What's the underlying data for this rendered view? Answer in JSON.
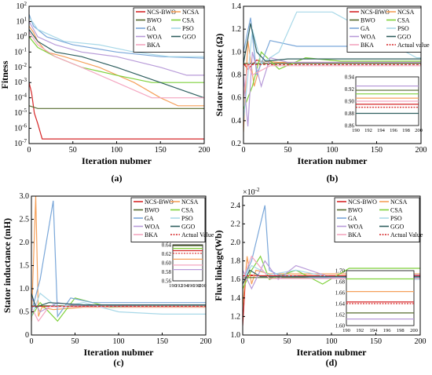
{
  "chart_data": [
    {
      "panel_label": "(a)",
      "type": "line",
      "ylabel": "Fitness",
      "xlabel": "Iteration nubmer",
      "yscale": "log",
      "xlim": [
        0,
        200
      ],
      "ylim": [
        1e-07,
        100
      ],
      "xticks": [
        0,
        50,
        100,
        150,
        200
      ],
      "yticks": [
        1e-07,
        1e-06,
        1e-05,
        0.0001,
        0.001,
        0.01,
        0.1,
        1,
        10,
        100
      ],
      "ytick_labels": [
        "10^-7",
        "10^-6",
        "10^-5",
        "10^-4",
        "10^-3",
        "10^-2",
        "10^-1",
        "10^0",
        "10^1",
        "10^2"
      ],
      "legend_position": "top-right",
      "series": [
        {
          "name": "NCS-BWO",
          "color": "#d62728",
          "x": [
            0,
            3,
            6,
            10,
            15,
            200
          ],
          "y": [
            0.001,
            0.0002,
            1e-05,
            2e-06,
            2e-07,
            2e-07
          ]
        },
        {
          "name": "NCSA",
          "color": "#f5a05a",
          "x": [
            0,
            5,
            10,
            20,
            40,
            80,
            120,
            150,
            170,
            200
          ],
          "y": [
            5,
            2,
            0.5,
            0.1,
            0.05,
            0.01,
            0.001,
            0.0001,
            3e-05,
            3e-05
          ]
        },
        {
          "name": "BWO",
          "color": "#556b2f",
          "x": [
            0,
            10,
            200
          ],
          "y": [
            3e-05,
            2e-05,
            2e-05
          ]
        },
        {
          "name": "CSA",
          "color": "#7fd13b",
          "x": [
            0,
            10,
            30,
            60,
            100,
            140,
            200
          ],
          "y": [
            1,
            0.2,
            0.05,
            0.01,
            0.003,
            0.001,
            0.001
          ]
        },
        {
          "name": "GA",
          "color": "#7aa7d9",
          "x": [
            0,
            5,
            20,
            50,
            100,
            150,
            200
          ],
          "y": [
            30,
            5,
            1,
            0.3,
            0.1,
            0.05,
            0.04
          ]
        },
        {
          "name": "PSO",
          "color": "#a8d8e8",
          "x": [
            0,
            10,
            40,
            80,
            120,
            160,
            200
          ],
          "y": [
            20,
            3,
            0.5,
            0.3,
            0.1,
            0.05,
            0.05
          ]
        },
        {
          "name": "WOA",
          "color": "#b89bd9",
          "x": [
            0,
            10,
            30,
            60,
            100,
            150,
            180,
            200
          ],
          "y": [
            10,
            1,
            0.3,
            0.1,
            0.05,
            0.01,
            0.003,
            0.003
          ]
        },
        {
          "name": "GGO",
          "color": "#2f5f5f",
          "x": [
            0,
            10,
            30,
            60,
            100,
            150,
            200
          ],
          "y": [
            3,
            0.5,
            0.1,
            0.05,
            0.01,
            0.001,
            0.0001
          ]
        },
        {
          "name": "BKA",
          "color": "#f4a6c0",
          "x": [
            0,
            10,
            30,
            60,
            100,
            140,
            200
          ],
          "y": [
            2,
            0.3,
            0.05,
            0.01,
            0.001,
            0.0001,
            0.0001
          ]
        }
      ]
    },
    {
      "panel_label": "(b)",
      "type": "line",
      "ylabel": "Stator resistance (Ω)",
      "xlabel": "Iteration nubmer",
      "xlim": [
        0,
        200
      ],
      "ylim": [
        0.2,
        1.4
      ],
      "xticks": [
        0,
        50,
        100,
        150,
        200
      ],
      "yticks": [
        0.2,
        0.4,
        0.6,
        0.8,
        1.0,
        1.2,
        1.4
      ],
      "ytick_labels": [
        "0.2",
        "0.4",
        "0.6",
        "0.8",
        "1.0",
        "1.2",
        "1.4"
      ],
      "legend_position": "top-right",
      "actual_value": 0.89,
      "series": [
        {
          "name": "NCS-BWO",
          "color": "#d62728",
          "x": [
            0,
            5,
            15,
            25,
            40,
            200
          ],
          "y": [
            0.9,
            0.85,
            0.93,
            0.9,
            0.9,
            0.9
          ]
        },
        {
          "name": "NCSA",
          "color": "#f5a05a",
          "x": [
            0,
            5,
            12,
            20,
            40,
            200
          ],
          "y": [
            0.3,
            1.1,
            0.7,
            0.92,
            0.91,
            0.91
          ]
        },
        {
          "name": "BWO",
          "color": "#556b2f",
          "x": [
            0,
            200
          ],
          "y": [
            0.9,
            0.9
          ]
        },
        {
          "name": "CSA",
          "color": "#7fd13b",
          "x": [
            0,
            10,
            20,
            40,
            70,
            110,
            200
          ],
          "y": [
            0.5,
            0.7,
            1.0,
            0.85,
            0.95,
            0.92,
            0.92
          ]
        },
        {
          "name": "GA",
          "color": "#7aa7d9",
          "x": [
            0,
            8,
            15,
            30,
            60,
            200
          ],
          "y": [
            1.0,
            1.3,
            0.8,
            1.1,
            1.05,
            1.05
          ]
        },
        {
          "name": "PSO",
          "color": "#a8d8e8",
          "x": [
            0,
            10,
            20,
            40,
            60,
            100,
            195,
            200
          ],
          "y": [
            0.4,
            1.2,
            0.9,
            1.0,
            1.35,
            1.35,
            0.95,
            0.95
          ]
        },
        {
          "name": "WOA",
          "color": "#b89bd9",
          "x": [
            0,
            5,
            10,
            20,
            30,
            50,
            200
          ],
          "y": [
            0.8,
            0.35,
            1.0,
            0.7,
            0.95,
            0.91,
            0.91
          ]
        },
        {
          "name": "GGO",
          "color": "#2f5f5f",
          "x": [
            0,
            8,
            15,
            25,
            50,
            200
          ],
          "y": [
            0.9,
            1.25,
            1.0,
            0.92,
            0.94,
            0.94
          ]
        },
        {
          "name": "BKA",
          "color": "#f4a6c0",
          "x": [
            0,
            5,
            10,
            30,
            200
          ],
          "y": [
            0.6,
            0.9,
            0.8,
            0.88,
            0.88
          ]
        }
      ],
      "inset": {
        "xlim": [
          190,
          200
        ],
        "ylim": [
          0.86,
          0.94
        ],
        "xticks": [
          190,
          192,
          194,
          196,
          198,
          200
        ],
        "yticks": [
          0.86,
          0.88,
          0.9,
          0.92,
          0.94
        ],
        "ytick_labels": [
          "0.86",
          "0.88",
          "0.90",
          "0.92",
          "0.94"
        ],
        "lines": [
          {
            "color": "#b89bd9",
            "y": 0.925
          },
          {
            "color": "#556b2f",
            "y": 0.918
          },
          {
            "color": "#7fd13b",
            "y": 0.912
          },
          {
            "color": "#f5a05a",
            "y": 0.905
          },
          {
            "color": "#f4a6c0",
            "y": 0.9
          },
          {
            "color": "#d62728",
            "y": 0.895
          },
          {
            "color": "#d62728",
            "y": 0.89,
            "dash": true
          },
          {
            "color": "#2f5f5f",
            "y": 0.88
          }
        ]
      }
    },
    {
      "panel_label": "(c)",
      "type": "line",
      "ylabel": "Stator inductance (mH)",
      "xlabel": "Iteration nubmer",
      "xlim": [
        0,
        200
      ],
      "ylim": [
        0,
        3.0
      ],
      "xticks": [
        0,
        50,
        100,
        150,
        200
      ],
      "yticks": [
        0,
        0.5,
        1.0,
        1.5,
        2.0,
        2.5,
        3.0
      ],
      "ytick_labels": [
        "0",
        "0.5",
        "1.0",
        "1.5",
        "2.0",
        "2.5",
        "3.0"
      ],
      "legend_position": "top-right",
      "actual_value": 0.62,
      "series": [
        {
          "name": "NCS-BWO",
          "color": "#d62728",
          "x": [
            0,
            3,
            200
          ],
          "y": [
            0.6,
            0.62,
            0.62
          ]
        },
        {
          "name": "NCSA",
          "color": "#f5a05a",
          "x": [
            0,
            5,
            8,
            12,
            25,
            60,
            200
          ],
          "y": [
            0.3,
            3.0,
            0.4,
            0.6,
            0.55,
            0.6,
            0.6
          ]
        },
        {
          "name": "BWO",
          "color": "#556b2f",
          "x": [
            0,
            200
          ],
          "y": [
            0.63,
            0.63
          ]
        },
        {
          "name": "CSA",
          "color": "#7fd13b",
          "x": [
            0,
            10,
            30,
            50,
            90,
            130,
            200
          ],
          "y": [
            0.4,
            0.7,
            0.3,
            0.8,
            0.6,
            0.62,
            0.62
          ]
        },
        {
          "name": "GA",
          "color": "#7aa7d9",
          "x": [
            0,
            10,
            25,
            30,
            45,
            70,
            200
          ],
          "y": [
            0.5,
            1.2,
            2.9,
            0.4,
            0.8,
            0.7,
            0.7
          ]
        },
        {
          "name": "PSO",
          "color": "#a8d8e8",
          "x": [
            0,
            10,
            30,
            60,
            100,
            150,
            200
          ],
          "y": [
            0.4,
            0.9,
            0.6,
            0.7,
            0.5,
            0.45,
            0.45
          ]
        },
        {
          "name": "WOA",
          "color": "#b89bd9",
          "x": [
            0,
            10,
            30,
            50,
            100,
            200
          ],
          "y": [
            0.8,
            0.5,
            0.7,
            0.64,
            0.64,
            0.64
          ]
        },
        {
          "name": "GGO",
          "color": "#2f5f5f",
          "x": [
            0,
            5,
            20,
            60,
            200
          ],
          "y": [
            0.9,
            0.6,
            0.7,
            0.65,
            0.65
          ]
        },
        {
          "name": "BKA",
          "color": "#f4a6c0",
          "x": [
            0,
            8,
            20,
            200
          ],
          "y": [
            0.6,
            0.3,
            0.61,
            0.61
          ]
        }
      ],
      "inset": {
        "xlim": [
          190,
          200
        ],
        "ylim": [
          0.56,
          0.64
        ],
        "xticks": [
          190,
          192,
          194,
          196,
          198,
          200
        ],
        "yticks": [
          0.56,
          0.58,
          0.6,
          0.62,
          0.64
        ],
        "ytick_labels": [
          "0.56",
          "0.58",
          "0.60",
          "0.62",
          "0.64"
        ],
        "lines": [
          {
            "color": "#556b2f",
            "y": 0.638
          },
          {
            "color": "#7fd13b",
            "y": 0.632
          },
          {
            "color": "#d62728",
            "y": 0.627
          },
          {
            "color": "#d62728",
            "y": 0.621,
            "dash": true
          },
          {
            "color": "#f5a05a",
            "y": 0.608
          },
          {
            "color": "#f4a6c0",
            "y": 0.595
          },
          {
            "color": "#b89bd9",
            "y": 0.585
          }
        ]
      }
    },
    {
      "panel_label": "(d)",
      "type": "line",
      "ylabel": "Flux linkage(Wb)",
      "xlabel": "Iteration nubmer",
      "yscale_factor_label": "×10",
      "yscale_factor_exp": "-2",
      "xlim": [
        0,
        200
      ],
      "ylim": [
        1.0,
        2.5
      ],
      "xticks": [
        0,
        50,
        100,
        150,
        200
      ],
      "yticks": [
        1.0,
        1.2,
        1.4,
        1.6,
        1.8,
        2.0,
        2.2,
        2.4
      ],
      "ytick_labels": [
        "1.0",
        "1.2",
        "1.4",
        "1.6",
        "1.8",
        "2.0",
        "2.2",
        "2.4"
      ],
      "legend_position": "top-right",
      "actual_value": 1.64,
      "series": [
        {
          "name": "NCS-BWO",
          "color": "#d62728",
          "x": [
            0,
            3,
            8,
            15,
            200
          ],
          "y": [
            1.1,
            1.6,
            1.65,
            1.64,
            1.64
          ]
        },
        {
          "name": "NCSA",
          "color": "#f5a05a",
          "x": [
            0,
            5,
            10,
            15,
            30,
            200
          ],
          "y": [
            1.3,
            1.85,
            1.55,
            1.7,
            1.66,
            1.66
          ]
        },
        {
          "name": "BWO",
          "color": "#556b2f",
          "x": [
            0,
            200
          ],
          "y": [
            1.62,
            1.62
          ]
        },
        {
          "name": "CSA",
          "color": "#7fd13b",
          "x": [
            0,
            10,
            20,
            30,
            60,
            90,
            120,
            200
          ],
          "y": [
            1.5,
            1.7,
            1.85,
            1.6,
            1.7,
            1.55,
            1.72,
            1.72
          ]
        },
        {
          "name": "GA",
          "color": "#7aa7d9",
          "x": [
            0,
            10,
            25,
            30,
            40,
            80,
            200
          ],
          "y": [
            1.6,
            1.8,
            2.4,
            1.7,
            1.65,
            1.62,
            1.62
          ]
        },
        {
          "name": "PSO",
          "color": "#a8d8e8",
          "x": [
            0,
            10,
            30,
            60,
            100,
            150,
            200
          ],
          "y": [
            1.6,
            1.75,
            1.65,
            1.7,
            1.62,
            1.6,
            1.6
          ]
        },
        {
          "name": "WOA",
          "color": "#b89bd9",
          "x": [
            0,
            10,
            25,
            40,
            60,
            100,
            140,
            200
          ],
          "y": [
            1.7,
            1.5,
            1.8,
            1.6,
            1.75,
            1.62,
            1.65,
            1.65
          ]
        },
        {
          "name": "GGO",
          "color": "#2f5f5f",
          "x": [
            0,
            8,
            20,
            200
          ],
          "y": [
            1.55,
            1.7,
            1.63,
            1.63
          ]
        },
        {
          "name": "BKA",
          "color": "#f4a6c0",
          "x": [
            0,
            10,
            30,
            200
          ],
          "y": [
            1.6,
            1.85,
            1.61,
            1.61
          ]
        }
      ],
      "inset": {
        "xlim": [
          190,
          200
        ],
        "ylim": [
          1.6,
          1.7
        ],
        "xticks": [
          190,
          192,
          194,
          196,
          198,
          200
        ],
        "yticks": [
          1.6,
          1.62,
          1.64,
          1.66,
          1.68,
          1.7
        ],
        "ytick_labels": [
          "1.60",
          "1.62",
          "1.64",
          "1.66",
          "1.68",
          "1.70"
        ],
        "lines": [
          {
            "color": "#7fd13b",
            "y": 1.685
          },
          {
            "color": "#f5a05a",
            "y": 1.662
          },
          {
            "color": "#d62728",
            "y": 1.643
          },
          {
            "color": "#d62728",
            "y": 1.64,
            "dash": true
          },
          {
            "color": "#556b2f",
            "y": 1.623
          },
          {
            "color": "#b89bd9",
            "y": 1.612
          }
        ]
      }
    }
  ],
  "legend_labels": {
    "a": [
      "NCS-BWO",
      "NCSA",
      "BWO",
      "CSA",
      "GA",
      "PSO",
      "WOA",
      "GGO",
      "BKA"
    ],
    "b": [
      "NCS-BWO",
      "NCSA",
      "BWO",
      "CSA",
      "GA",
      "PSO",
      "WOA",
      "GGO",
      "BKA",
      "Actual value"
    ],
    "c": [
      "NCS-BWO",
      "NCSA",
      "BWO",
      "CSA",
      "GA",
      "PSO",
      "WOA",
      "GGO",
      "BKA",
      "Actual Value"
    ],
    "d": [
      "NCS-BWO",
      "NCSA",
      "BWO",
      "CSA",
      "GA",
      "PSO",
      "WOA",
      "GGO",
      "BKA",
      "Actual Value"
    ]
  }
}
